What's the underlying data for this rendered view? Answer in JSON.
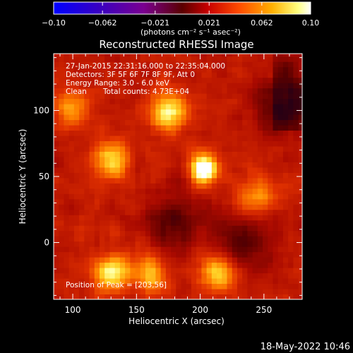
{
  "colorbar": {
    "ticks": [
      "−0.10",
      "−0.062",
      "−0.021",
      "0.021",
      "0.062",
      "0.10"
    ],
    "tick_values": [
      -0.1,
      -0.062,
      -0.021,
      0.021,
      0.062,
      0.1
    ],
    "range": [
      -0.1,
      0.1
    ],
    "unit_label": "(photons cm⁻² s⁻¹ asec⁻²)",
    "palette": [
      "#0000ff",
      "#4b00a8",
      "#8a0060",
      "#c00000",
      "#ff4000",
      "#ffb000",
      "#ffff80",
      "#ffffff"
    ]
  },
  "chart_data": {
    "type": "heatmap",
    "title": "Reconstructed RHESSI Image",
    "xlabel": "Heliocentric X (arcsec)",
    "ylabel": "Heliocentric Y (arcsec)",
    "xlim": [
      85,
      280
    ],
    "ylim": [
      -43,
      143
    ],
    "x_ticks": [
      100,
      150,
      200,
      250
    ],
    "y_ticks": [
      0,
      50,
      100
    ],
    "peak": [
      203,
      56
    ],
    "bright_sources": [
      {
        "x": 203,
        "y": 56,
        "level": 1.0
      },
      {
        "x": 175,
        "y": 100,
        "level": 0.7
      },
      {
        "x": 130,
        "y": 62,
        "level": 0.62
      },
      {
        "x": 130,
        "y": -23,
        "level": 0.65
      },
      {
        "x": 160,
        "y": -22,
        "level": 0.55
      },
      {
        "x": 215,
        "y": -22,
        "level": 0.6
      },
      {
        "x": 245,
        "y": 35,
        "level": 0.5
      },
      {
        "x": 100,
        "y": 100,
        "level": 0.45
      }
    ],
    "dark_regions": [
      {
        "x": 265,
        "y": 105
      },
      {
        "x": 180,
        "y": 15
      },
      {
        "x": 235,
        "y": 0
      }
    ]
  },
  "annotations": {
    "time_range": "27-Jan-2015 22:31:16.000 to 22:35:04.000",
    "detectors": "Detectors: 3F 5F 6F 7F 8F 9F, Att 0",
    "energy": "Energy Range: 3.0 - 6.0 keV",
    "clean": "Clean",
    "total_counts": "Total counts: 4.73E+04",
    "peak_position": "Position of Peak = [203,56]"
  },
  "footer": {
    "timestamp": "18-May-2022 10:46"
  }
}
